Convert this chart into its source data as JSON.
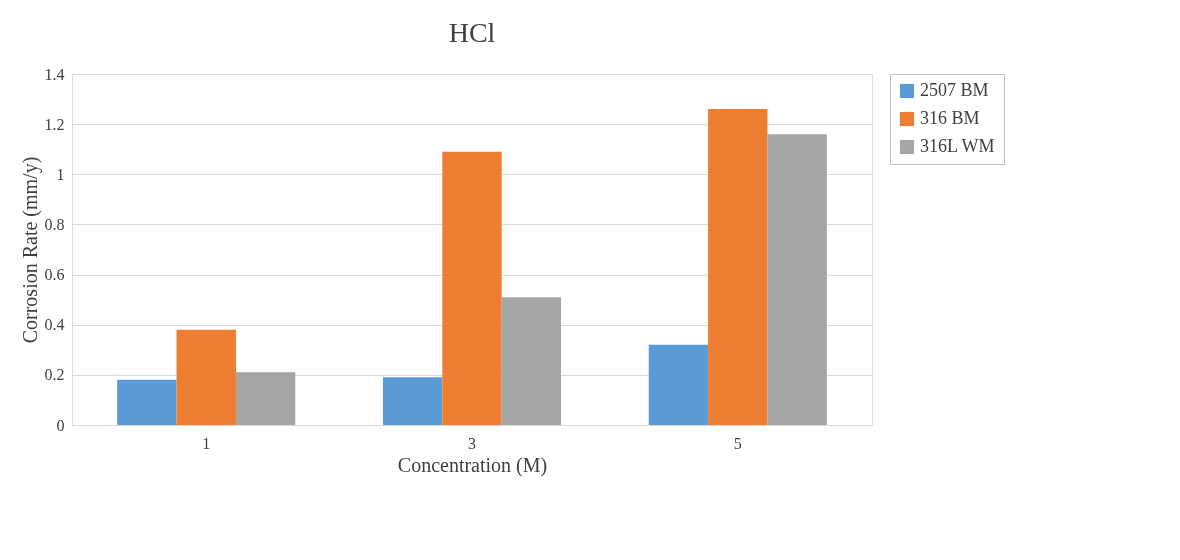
{
  "chart_data": {
    "type": "bar",
    "title": "HCl",
    "xlabel": "Concentration (M)",
    "ylabel": "Corrosion Rate (mm/y)",
    "categories": [
      "1",
      "3",
      "5"
    ],
    "series": [
      {
        "name": "2507 BM",
        "color": "#5b9bd5",
        "values": [
          0.18,
          0.19,
          0.32
        ]
      },
      {
        "name": "316 BM",
        "color": "#ed7d31",
        "values": [
          0.38,
          1.09,
          1.26
        ]
      },
      {
        "name": "316L WM",
        "color": "#a5a5a5",
        "values": [
          0.21,
          0.51,
          1.16
        ]
      }
    ],
    "ylim": [
      0,
      1.4
    ],
    "yticks": [
      0,
      0.2,
      0.4,
      0.6,
      0.8,
      1,
      1.2,
      1.4
    ],
    "grid": "y",
    "legend": "right"
  }
}
